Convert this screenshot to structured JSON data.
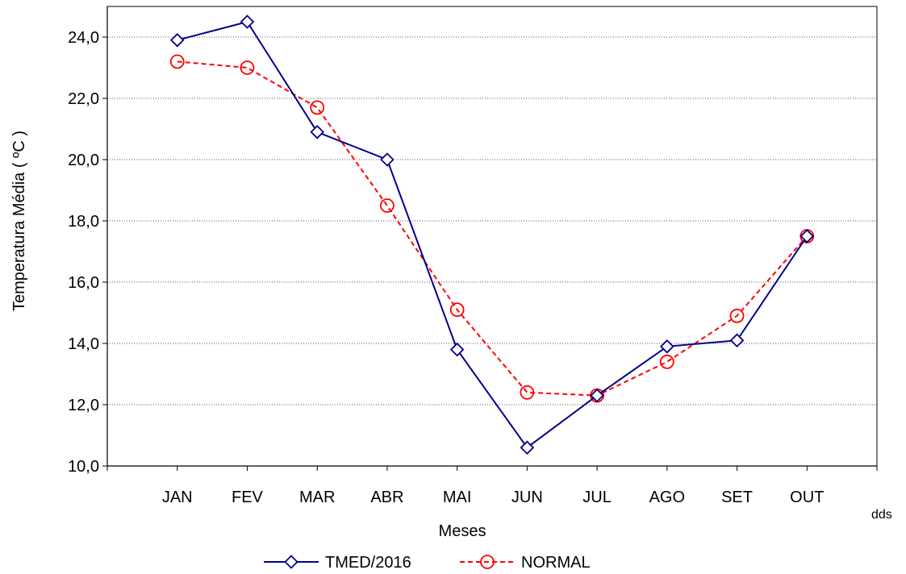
{
  "chart_data": {
    "type": "line",
    "categories": [
      "JAN",
      "FEV",
      "MAR",
      "ABR",
      "MAI",
      "JUN",
      "JUL",
      "AGO",
      "SET",
      "OUT"
    ],
    "series": [
      {
        "name": "TMED/2016",
        "values": [
          23.9,
          24.5,
          20.9,
          20.0,
          13.8,
          10.6,
          12.3,
          13.9,
          14.1,
          17.5
        ],
        "color": "#00008b",
        "line_style": "solid",
        "marker": "diamond"
      },
      {
        "name": "NORMAL",
        "values": [
          23.2,
          23.0,
          21.7,
          18.5,
          15.1,
          12.4,
          12.3,
          13.4,
          14.9,
          17.5
        ],
        "color": "#ff0000",
        "line_style": "dashed",
        "marker": "circle"
      }
    ],
    "xlabel": "Meses",
    "ylabel": "Temperatura Média ( ºC )",
    "ylim": [
      10,
      25
    ],
    "yticks": [
      "10,0",
      "12,0",
      "14,0",
      "16,0",
      "18,0",
      "20,0",
      "22,0",
      "24,0"
    ],
    "ytick_values": [
      10,
      12,
      14,
      16,
      18,
      20,
      22,
      24
    ],
    "grid": "horizontal dotted",
    "legend_position": "bottom-center",
    "annotation": "dds"
  }
}
